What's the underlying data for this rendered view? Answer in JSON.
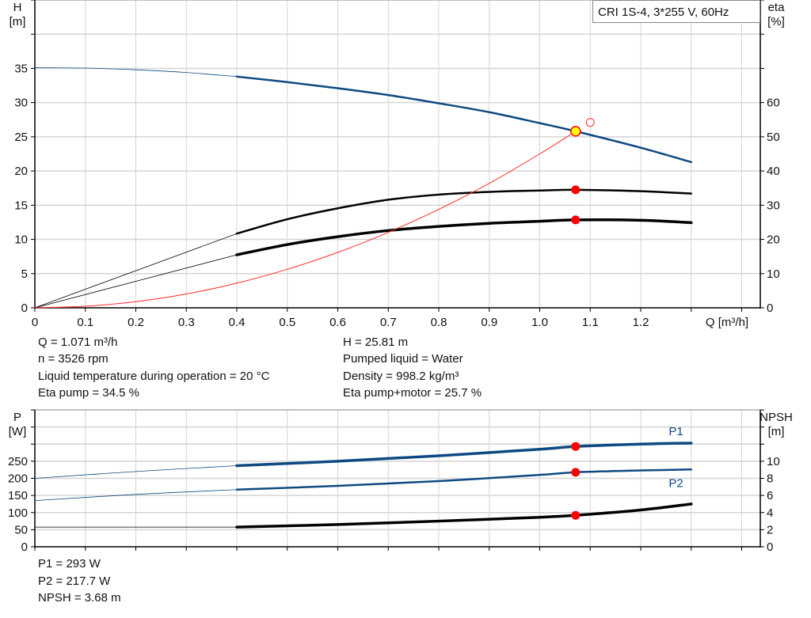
{
  "chart_data": [
    {
      "type": "line",
      "title": "CRI 1S-4, 3*255 V, 60Hz",
      "xlabel": "Q [m³/h]",
      "ylabel": "H\n[m]",
      "ylabel_right": "eta\n[%]",
      "xlim": [
        0,
        1.45
      ],
      "ylim": [
        0,
        45
      ],
      "ylim_right": [
        0,
        90
      ],
      "x_ticks": [
        "0",
        "0.1",
        "0.2",
        "0.3",
        "0.4",
        "0.5",
        "0.6",
        "0.7",
        "0.8",
        "0.9",
        "1.0",
        "1.1",
        "1.2"
      ],
      "y_ticks": [
        "0",
        "5",
        "10",
        "15",
        "20",
        "25",
        "30",
        "35"
      ],
      "y_ticks_right": [
        "0",
        "10",
        "20",
        "30",
        "40",
        "50",
        "60"
      ],
      "grid": true,
      "series": [
        {
          "axis": "left",
          "color": "#0d4a82",
          "x": [
            0,
            0.1,
            0.2,
            0.3,
            0.4,
            0.5,
            0.6,
            0.7,
            0.8,
            0.9,
            1.0,
            1.071,
            1.2,
            1.3
          ],
          "y": [
            35.1,
            35.05,
            34.8,
            34.4,
            33.8,
            33.0,
            32.1,
            31.1,
            29.9,
            28.6,
            27.0,
            25.81,
            23.4,
            21.3
          ],
          "thin_below": 0.4
        },
        {
          "axis": "right",
          "color": "#000000",
          "x": [
            0,
            0.4,
            0.5,
            0.6,
            0.7,
            0.8,
            0.9,
            1.0,
            1.071,
            1.2,
            1.3
          ],
          "y": [
            0,
            21.7,
            25.9,
            29.1,
            31.6,
            33.1,
            33.9,
            34.3,
            34.5,
            34.1,
            33.4
          ],
          "thin_below": 0.4
        },
        {
          "axis": "right",
          "color": "#000000",
          "x": [
            0,
            0.4,
            0.5,
            0.6,
            0.7,
            0.8,
            0.9,
            1.0,
            1.071,
            1.2,
            1.3
          ],
          "y": [
            0,
            15.5,
            18.5,
            20.8,
            22.6,
            23.8,
            24.7,
            25.3,
            25.7,
            25.6,
            24.9
          ],
          "thin_below": 0.4,
          "bold": true
        },
        {
          "axis": "left",
          "color": "#ff2a2a",
          "type": "system",
          "x": [
            0,
            0.1,
            0.2,
            0.3,
            0.4,
            0.5,
            0.6,
            0.7,
            0.8,
            0.9,
            1.0,
            1.071
          ],
          "y": [
            0,
            0.23,
            0.9,
            2.02,
            3.6,
            5.63,
            8.1,
            11.03,
            14.4,
            18.2,
            22.5,
            25.81
          ]
        }
      ],
      "markers": [
        {
          "axis": "left",
          "x": 1.071,
          "y": 25.81,
          "style": "duty-point",
          "fill": "#ffff00",
          "stroke": "#ff0000"
        },
        {
          "axis": "left",
          "x": 1.1,
          "y": 27.1,
          "style": "open",
          "stroke": "#ff2a2a"
        },
        {
          "axis": "right",
          "x": 1.071,
          "y": 34.5,
          "style": "dot",
          "fill": "#ff0000"
        },
        {
          "axis": "right",
          "x": 1.071,
          "y": 25.7,
          "style": "dot",
          "fill": "#ff0000"
        }
      ]
    },
    {
      "type": "line",
      "ylabel": "P\n[W]",
      "ylabel_right": "NPSH\n[m]",
      "xlim": [
        0,
        1.45
      ],
      "ylim": [
        0,
        400
      ],
      "ylim_right": [
        0,
        16
      ],
      "y_ticks": [
        "0",
        "50",
        "100",
        "150",
        "200",
        "250"
      ],
      "y_ticks_right": [
        "0",
        "2",
        "4",
        "6",
        "8",
        "10"
      ],
      "grid": true,
      "series": [
        {
          "name": "P1",
          "axis": "left",
          "color": "#0d4a82",
          "x": [
            0,
            0.2,
            0.4,
            0.6,
            0.8,
            1.0,
            1.071,
            1.2,
            1.3
          ],
          "y": [
            200,
            220,
            237,
            250,
            266,
            285,
            293,
            300,
            303
          ],
          "thin_below": 0.4,
          "bold": true
        },
        {
          "name": "P2",
          "axis": "left",
          "color": "#0d4a82",
          "x": [
            0,
            0.2,
            0.4,
            0.6,
            0.8,
            1.0,
            1.071,
            1.2,
            1.3
          ],
          "y": [
            135,
            153,
            167,
            178,
            192,
            210,
            217.7,
            223,
            226
          ],
          "thin_below": 0.4
        },
        {
          "axis": "right",
          "color": "#000000",
          "x": [
            0,
            0.2,
            0.4,
            0.6,
            0.8,
            1.0,
            1.071,
            1.2,
            1.3
          ],
          "y": [
            2.3,
            2.3,
            2.3,
            2.6,
            3.0,
            3.45,
            3.68,
            4.3,
            5.0
          ],
          "thin_below": 0.4,
          "bold": true
        }
      ],
      "markers": [
        {
          "axis": "left",
          "x": 1.071,
          "y": 293,
          "style": "dot",
          "fill": "#ff0000"
        },
        {
          "axis": "left",
          "x": 1.071,
          "y": 217.7,
          "style": "dot",
          "fill": "#ff0000"
        },
        {
          "axis": "right",
          "x": 1.071,
          "y": 3.68,
          "style": "dot",
          "fill": "#ff0000"
        }
      ]
    }
  ],
  "info_top": {
    "q": "Q = 1.071 m³/h",
    "n": "n = 3526 rpm",
    "temp": "Liquid temperature during operation = 20 °C",
    "eta_pump": "Eta pump = 34.5 %",
    "h": "H = 25.81 m",
    "liquid": "Pumped liquid = Water",
    "density": "Density = 998.2 kg/m³",
    "eta_total": "Eta pump+motor = 25.7 %"
  },
  "info_bottom": {
    "p1": "P1 = 293 W",
    "p2": "P2 = 217.7 W",
    "npsh": "NPSH = 3.68 m"
  }
}
